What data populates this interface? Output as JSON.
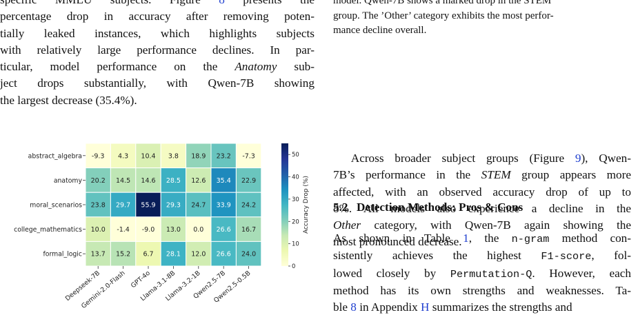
{
  "left_text": {
    "lines": [
      [
        "specific MMLU subjects. Figure ",
        {
          "ref": "8"
        },
        " presents the"
      ],
      [
        "percentage drop in accuracy after removing poten-"
      ],
      [
        "tially leaked instances, which highlights subjects"
      ],
      [
        "with relatively large performance declines. In par-"
      ],
      [
        "ticular, model performance on the ",
        {
          "em": "Anatomy"
        },
        " sub-"
      ],
      [
        "ject drops substantially, with Qwen-7B showing"
      ],
      [
        "the largest decrease (35.4%)."
      ]
    ]
  },
  "right_caption": {
    "lines": [
      [
        "model. Qwen-7B shows a marked drop in the STEM"
      ],
      [
        "group. The ’Other’ category exhibits the most perfor-"
      ],
      [
        "mance decline overall."
      ]
    ]
  },
  "right_para": {
    "lines": [
      [
        "    Across broader subject groups (Figure ",
        {
          "ref": "9"
        },
        "), Qwen-"
      ],
      [
        "7B’s performance in the ",
        {
          "em": "STEM"
        },
        " group appears more"
      ],
      [
        "affected, with an observed accuracy drop of up to"
      ],
      [
        "8%. All models also experience a decline in the"
      ],
      [
        {
          "em": "Other"
        },
        " category, with Qwen-7B again showing the"
      ],
      [
        "most pronounced decrease."
      ]
    ]
  },
  "section": {
    "number": "5.2",
    "title": "Detection Methods: Pros & Cons"
  },
  "right_para2": {
    "lines": [
      [
        "As shown in Table ",
        {
          "ref": "1"
        },
        ", the ",
        {
          "mono": "n-gram"
        },
        " method con-"
      ],
      [
        "sistently achieves the highest ",
        {
          "mono": "F1-score"
        },
        ", fol-"
      ],
      [
        "lowed closely by ",
        {
          "mono": "Permutation-Q"
        },
        ". However, each"
      ],
      [
        "method has its own strengths and weaknesses. Ta-"
      ],
      [
        "ble ",
        {
          "ref": "8"
        },
        " in Appendix ",
        {
          "ref": "H"
        },
        " summarizes the strengths and"
      ]
    ]
  },
  "chart_data": {
    "type": "heatmap",
    "title": "",
    "xlabel": "",
    "ylabel": "",
    "rows": [
      "abstract_algebra",
      "anatomy",
      "moral_scenarios",
      "college_mathematics",
      "formal_logic"
    ],
    "columns": [
      "Deepseek-7B",
      "Gemini-2.0-Flash",
      "GPT-4o",
      "Llama-3.1-8B",
      "Llama-3.2-1B",
      "Qwen2.5-7B",
      "Qwen2.5-0.5B"
    ],
    "values": [
      [
        -9.3,
        4.3,
        10.4,
        3.8,
        18.9,
        23.2,
        -7.3
      ],
      [
        20.2,
        14.5,
        14.6,
        28.5,
        12.6,
        35.4,
        22.9
      ],
      [
        23.8,
        29.7,
        55.9,
        29.3,
        24.7,
        33.9,
        24.2
      ],
      [
        10.0,
        -1.4,
        -9.0,
        13.0,
        0.0,
        26.6,
        16.7
      ],
      [
        13.7,
        15.2,
        6.7,
        28.1,
        12.0,
        26.6,
        24.0
      ]
    ],
    "colorbar": {
      "label": "Accuracy Drop (%)",
      "ticks": [
        0,
        10,
        20,
        30,
        40,
        50
      ],
      "range": [
        0,
        55
      ]
    },
    "colormap": "YlGnBu"
  }
}
